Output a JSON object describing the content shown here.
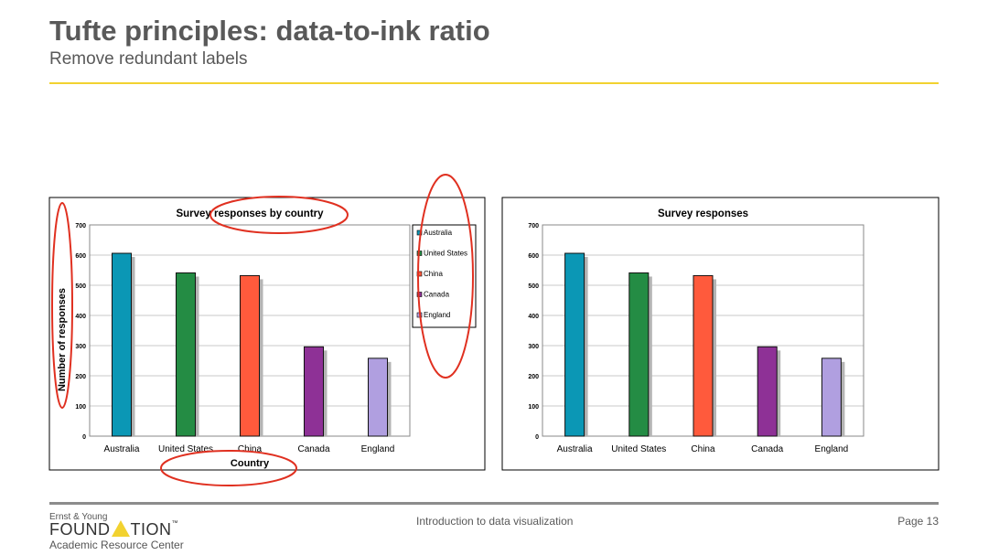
{
  "slide": {
    "title": "Tufte principles: data-to-ink ratio",
    "subtitle": "Remove redundant labels"
  },
  "footer": {
    "center": "Introduction to data visualization",
    "page": "Page 13",
    "logo_top": "Ernst & Young",
    "logo_main_left": "FOUND",
    "logo_main_right": "TION",
    "logo_tm": "™",
    "logo_sub": "Academic Resource Center"
  },
  "colors": {
    "accent_yellow": "#f2d230",
    "annotation_red": "#e03020",
    "Australia": "#0b97b5",
    "United States": "#248c44",
    "China": "#ff5a3c",
    "Canada": "#8e3196",
    "England": "#b09fe0"
  },
  "chart_data": [
    {
      "type": "bar",
      "title": "Survey responses by country",
      "xlabel": "Country",
      "ylabel": "Number of responses",
      "categories": [
        "Australia",
        "United States",
        "China",
        "Canada",
        "England"
      ],
      "values": [
        606,
        541,
        532,
        296,
        258
      ],
      "ylim": [
        0,
        700
      ],
      "yticks": [
        0,
        100,
        200,
        300,
        400,
        500,
        600,
        700
      ],
      "grid": true,
      "legend": {
        "placement": "right",
        "entries": [
          "Australia",
          "United States",
          "China",
          "Canada",
          "England"
        ]
      },
      "annotations": [
        "ylabel circled",
        "title suffix circled",
        "legend circled",
        "xlabel circled"
      ]
    },
    {
      "type": "bar",
      "title": "Survey responses",
      "xlabel": "",
      "ylabel": "",
      "categories": [
        "Australia",
        "United States",
        "China",
        "Canada",
        "England"
      ],
      "values": [
        606,
        541,
        532,
        296,
        258
      ],
      "ylim": [
        0,
        700
      ],
      "yticks": [
        0,
        100,
        200,
        300,
        400,
        500,
        600,
        700
      ],
      "grid": true,
      "legend": null
    }
  ]
}
